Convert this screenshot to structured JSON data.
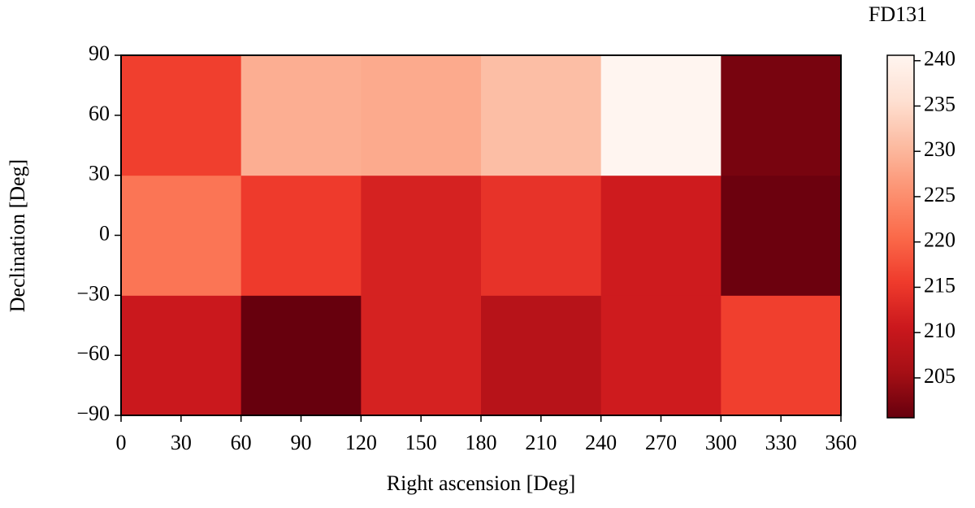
{
  "chart_data": {
    "type": "heatmap",
    "xlabel": "Right ascension [Deg]",
    "ylabel": "Declination [Deg]",
    "colorbar_label": "FD131",
    "colormap": "Reds_r",
    "x_edges": [
      0,
      60,
      120,
      180,
      240,
      300,
      360
    ],
    "y_edges": [
      -90,
      -30,
      30,
      90
    ],
    "values": [
      [
        210.5,
        200.6,
        212,
        208,
        211,
        216
      ],
      [
        222,
        215.5,
        212,
        214.5,
        211,
        201
      ],
      [
        216,
        229,
        228.5,
        231,
        240.6,
        202
      ]
    ],
    "xlim": [
      0,
      360
    ],
    "ylim": [
      -90,
      90
    ],
    "xticks": [
      0,
      30,
      60,
      90,
      120,
      150,
      180,
      210,
      240,
      270,
      300,
      330,
      360
    ],
    "yticks": [
      {
        "value": -90,
        "label": "−90"
      },
      {
        "value": -60,
        "label": "−60"
      },
      {
        "value": -30,
        "label": "−30"
      },
      0,
      30,
      60,
      90
    ],
    "clim": [
      200.6,
      240.6
    ],
    "cticks": [
      205,
      210,
      215,
      220,
      225,
      230,
      235,
      240
    ]
  }
}
